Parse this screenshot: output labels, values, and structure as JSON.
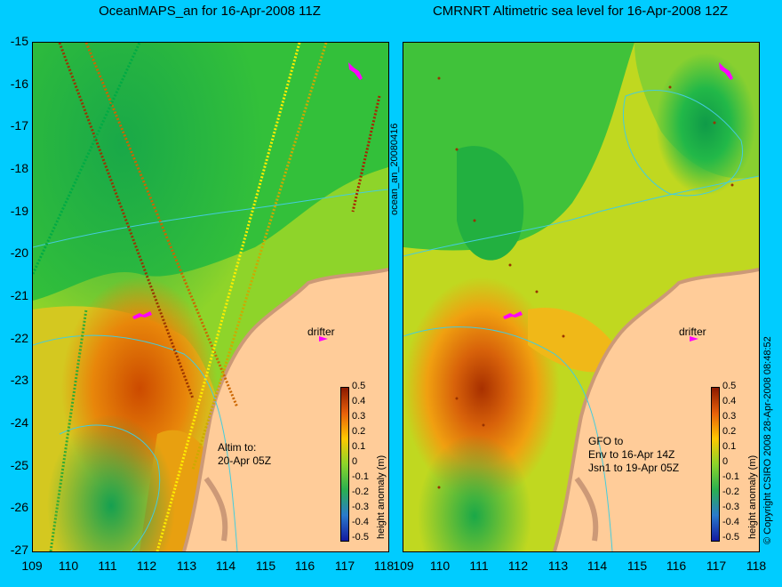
{
  "left_panel": {
    "title": "OceanMAPS_an for 16-Apr-2008 11Z",
    "annotation_lines": [
      "Altim to:",
      "20-Apr 05Z"
    ],
    "drifter_label": "drifter"
  },
  "right_panel": {
    "title": "CMRNRT Altimetric sea level  for 16-Apr-2008 12Z",
    "annotation_lines": [
      "GFO to",
      "Env to 16-Apr 14Z",
      "Jsn1 to 19-Apr 05Z"
    ],
    "drifter_label": "drifter"
  },
  "side_label": "ocean_an_20080416",
  "copyright": "© Copyright CSIRO 2008   28-Apr-2008 08:48:52",
  "x_ticks": [
    "109",
    "110",
    "111",
    "112",
    "113",
    "114",
    "115",
    "116",
    "117",
    "118"
  ],
  "y_ticks": [
    "-15",
    "-16",
    "-17",
    "-18",
    "-19",
    "-20",
    "-21",
    "-22",
    "-23",
    "-24",
    "-25",
    "-26",
    "-27"
  ],
  "colorbar": {
    "label": "height anomaly (m)",
    "ticks": [
      "0.5",
      "0.4",
      "0.3",
      "0.2",
      "0.1",
      "0",
      "-0.1",
      "-0.2",
      "-0.3",
      "-0.4",
      "-0.5"
    ]
  },
  "colors": {
    "background": "#00ccff",
    "land": "#ffcc99",
    "coast": "#cc9977",
    "drifter_marker": "#ff00ff",
    "contour": "#44ccdd"
  }
}
